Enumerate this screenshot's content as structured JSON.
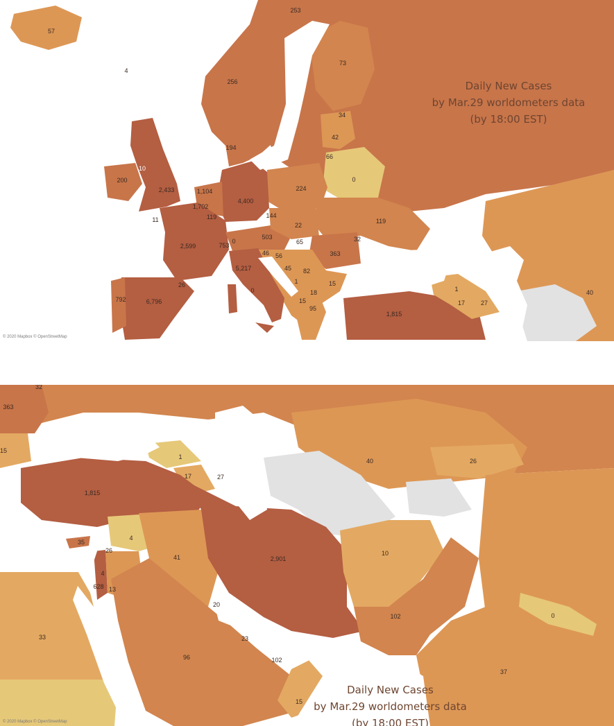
{
  "colors": {
    "very_high": "#b45e42",
    "high": "#c8754a",
    "medium_high": "#d2854e",
    "medium": "#dd9755",
    "medium_low": "#e3a962",
    "low": "#e6c879",
    "no_data": "#e2e2e2",
    "water": "#ffffff"
  },
  "europe": {
    "title_lines": [
      "Daily New Cases",
      "by Mar.29 worldometers data",
      "(by 18:00 EST)"
    ],
    "attribution": "© 2020 Mapbox © OpenStreetMap",
    "labels": [
      "253",
      "57",
      "4",
      "73",
      "256",
      "34",
      "42",
      "194",
      "66",
      "10",
      "1,104",
      "0",
      "200",
      "2,433",
      "4,400",
      "224",
      "1,702",
      "119",
      "144",
      "11",
      "22",
      "119",
      "503",
      "32",
      "65",
      "753",
      "0",
      "363",
      "2,599",
      "46",
      "56",
      "5,217",
      "45",
      "82",
      "1",
      "18",
      "15",
      "1",
      "792",
      "6,796",
      "26",
      "0",
      "40",
      "15",
      "95",
      "17",
      "27",
      "1,815"
    ]
  },
  "middle_east": {
    "title_lines": [
      "Daily New Cases",
      "by Mar.29 worldometers data",
      "(by 18:00 EST)"
    ],
    "attribution": "© 2020 Mapbox © OpenStreetMap",
    "labels": [
      "32",
      "363",
      "15",
      "1",
      "40",
      "26",
      "17",
      "27",
      "1,815",
      "35",
      "4",
      "26",
      "41",
      "2,901",
      "10",
      "4",
      "628",
      "13",
      "20",
      "102",
      "0",
      "33",
      "23",
      "96",
      "102",
      "37",
      "15"
    ]
  }
}
